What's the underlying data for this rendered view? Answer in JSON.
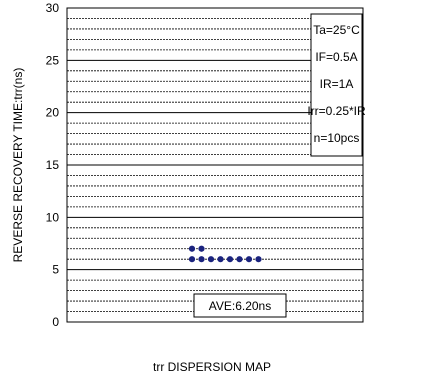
{
  "chart_data": {
    "type": "scatter",
    "xlabel": "trr DISPERSION MAP",
    "ylabel": "REVERSE RECOVERY TIME:trr(ns)",
    "ylim": [
      0,
      30
    ],
    "yticks": [
      "0",
      "5",
      "10",
      "15",
      "20",
      "25",
      "30"
    ],
    "grid": true,
    "grid_step": 1,
    "marker_color": "#1a237e",
    "points": [
      {
        "x": 1,
        "y": 7
      },
      {
        "x": 2,
        "y": 7
      },
      {
        "x": 1,
        "y": 6
      },
      {
        "x": 2,
        "y": 6
      },
      {
        "x": 3,
        "y": 6
      },
      {
        "x": 4,
        "y": 6
      },
      {
        "x": 5,
        "y": 6
      },
      {
        "x": 6,
        "y": 6
      },
      {
        "x": 7,
        "y": 6
      },
      {
        "x": 8,
        "y": 6
      }
    ],
    "conditions": [
      "Ta=25°C",
      "IF=0.5A",
      "IR=1A",
      "Irr=0.25*IR",
      "n=10pcs"
    ],
    "annotation": "AVE:6.20ns"
  }
}
